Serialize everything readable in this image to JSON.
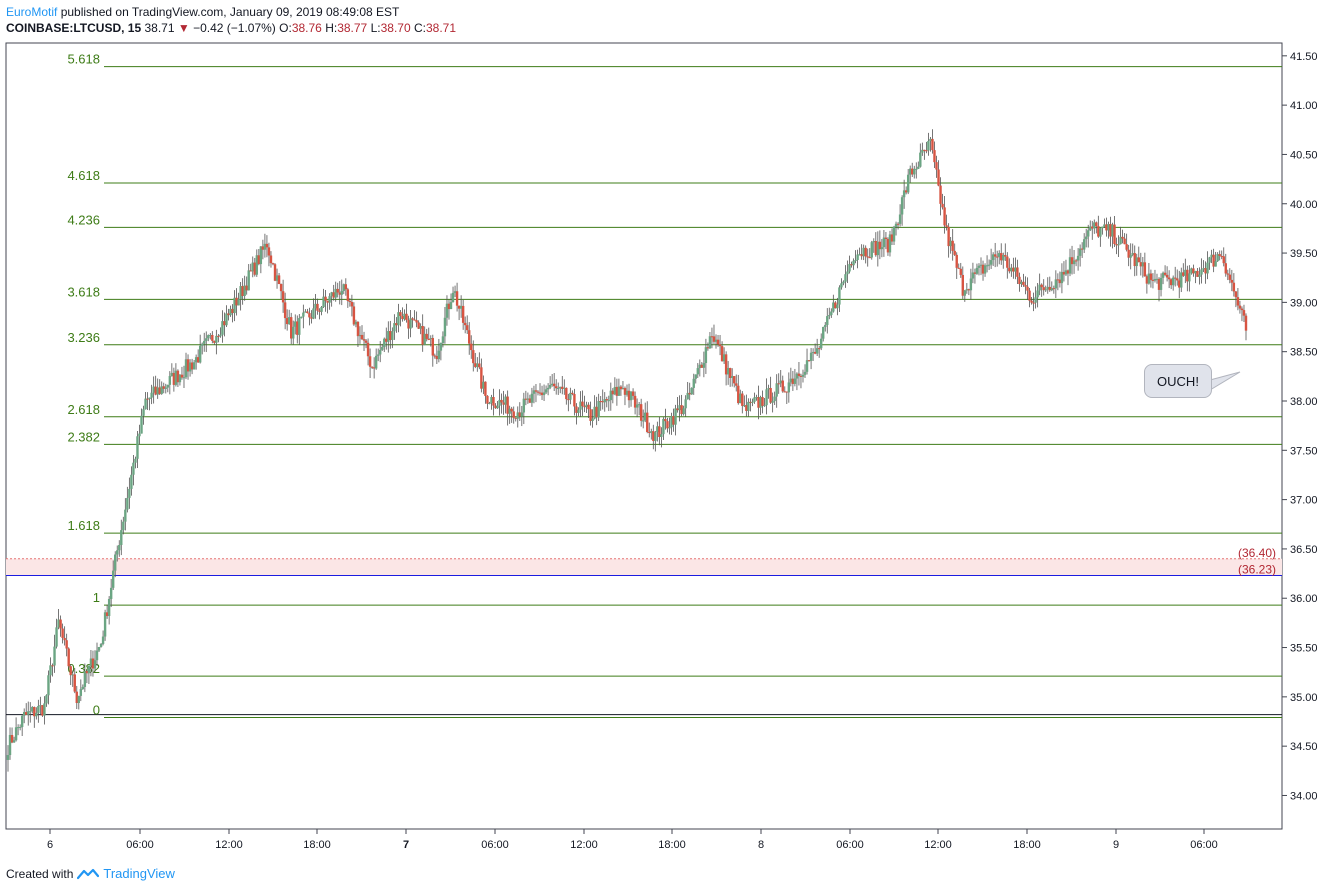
{
  "header": {
    "author": "EuroMotif",
    "published": "published on TradingView.com, January 09, 2019 08:49:08 EST",
    "symbol": "COINBASE:LTCUSD, 15",
    "last": "38.71",
    "change": "−0.42 (−1.07%)",
    "o_label": "O:",
    "o_value": "38.76",
    "h_label": "H:",
    "h_value": "38.77",
    "l_label": "L:",
    "l_value": "38.70",
    "c_label": "C:",
    "c_value": "38.71"
  },
  "footer": {
    "created_with": "Created with",
    "brand": "TradingView"
  },
  "annotation": {
    "text": "OUCH!"
  },
  "colors": {
    "up": "#6ba583",
    "down": "#d75442",
    "fib": "#3e7c17",
    "blue": "#1c1ce0",
    "red_label": "#b22833",
    "grid_text": "#131722"
  },
  "chart_data": {
    "type": "candlestick",
    "y_axis": {
      "min": 33.66,
      "max": 41.63,
      "ticks": [
        "34.00",
        "34.50",
        "35.00",
        "35.50",
        "36.00",
        "36.50",
        "37.00",
        "37.50",
        "38.00",
        "38.50",
        "39.00",
        "39.50",
        "40.00",
        "40.50",
        "41.00",
        "41.50"
      ]
    },
    "x_ticks": [
      "6",
      "06:00",
      "12:00",
      "18:00",
      "7",
      "06:00",
      "12:00",
      "18:00",
      "8",
      "06:00",
      "12:00",
      "18:00",
      "9",
      "06:00"
    ],
    "x_ticks_bold": [
      false,
      false,
      false,
      false,
      true,
      false,
      false,
      false,
      false,
      false,
      false,
      false,
      false,
      false
    ],
    "fib_levels": [
      {
        "label": "5.618",
        "price": 41.39
      },
      {
        "label": "4.618",
        "price": 40.21
      },
      {
        "label": "4.236",
        "price": 39.76
      },
      {
        "label": "3.618",
        "price": 39.03
      },
      {
        "label": "3.236",
        "price": 38.57
      },
      {
        "label": "2.618",
        "price": 37.84
      },
      {
        "label": "2.382",
        "price": 37.56
      },
      {
        "label": "1.618",
        "price": 36.66
      },
      {
        "label": "1",
        "price": 35.93
      },
      {
        "label": "0.382",
        "price": 35.21
      },
      {
        "label": "0",
        "price": 34.79
      }
    ],
    "zone": {
      "upper_label": "(36.40)",
      "upper": 36.4,
      "lower_label": "(36.23)",
      "lower": 36.23
    },
    "support_price": 34.82,
    "anchors": [
      [
        0,
        34.5
      ],
      [
        8,
        34.8
      ],
      [
        18,
        34.9
      ],
      [
        25,
        35.75
      ],
      [
        34,
        35.0
      ],
      [
        46,
        35.55
      ],
      [
        55,
        36.6
      ],
      [
        68,
        38.0
      ],
      [
        92,
        38.4
      ],
      [
        110,
        38.9
      ],
      [
        128,
        39.6
      ],
      [
        140,
        38.7
      ],
      [
        165,
        39.15
      ],
      [
        180,
        38.35
      ],
      [
        194,
        38.9
      ],
      [
        212,
        38.5
      ],
      [
        220,
        39.15
      ],
      [
        236,
        38.05
      ],
      [
        252,
        37.9
      ],
      [
        268,
        38.15
      ],
      [
        288,
        37.85
      ],
      [
        304,
        38.15
      ],
      [
        320,
        37.65
      ],
      [
        336,
        38.0
      ],
      [
        348,
        38.7
      ],
      [
        364,
        37.9
      ],
      [
        384,
        38.15
      ],
      [
        400,
        38.5
      ],
      [
        418,
        39.5
      ],
      [
        436,
        39.6
      ],
      [
        446,
        40.3
      ],
      [
        456,
        40.6
      ],
      [
        464,
        39.7
      ],
      [
        472,
        39.15
      ],
      [
        490,
        39.5
      ],
      [
        506,
        39.05
      ],
      [
        522,
        39.3
      ],
      [
        536,
        39.75
      ],
      [
        546,
        39.7
      ],
      [
        566,
        39.2
      ],
      [
        584,
        39.25
      ],
      [
        600,
        39.5
      ],
      [
        612,
        38.72
      ]
    ]
  }
}
